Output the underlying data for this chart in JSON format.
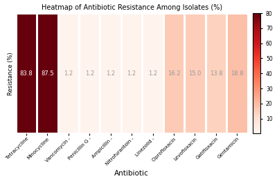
{
  "antibiotics": [
    "Tetracycline",
    "Minocycline",
    "Vancomycin -",
    "Penicillin G -",
    "Ampicillin -",
    "Nitrofurantoin -",
    "Linezolid -",
    "Ciprofloxacin",
    "Levofloxacin",
    "Gatifloxacin",
    "Gentamicin"
  ],
  "values": [
    83.8,
    87.5,
    1.2,
    1.2,
    1.2,
    1.2,
    1.2,
    16.2,
    15.0,
    13.8,
    18.8
  ],
  "title": "Heatmap of Antibiotic Resistance Among Isolates (%)",
  "xlabel": "Antibiotic",
  "ylabel": "Resistance (%)",
  "vmin": 0,
  "vmax": 80,
  "cbar_ticks": [
    10,
    20,
    30,
    40,
    50,
    60,
    70,
    80
  ],
  "cmap": "Reds",
  "background_color": "#ffffff",
  "text_color_light": "#ffffff",
  "text_color_dark": "#999999",
  "text_threshold": 30,
  "cell_linewidth": 0.8,
  "cell_linecolor": "#ffffff"
}
